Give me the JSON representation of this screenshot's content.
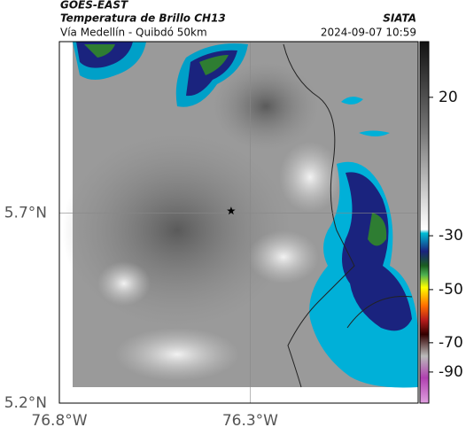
{
  "header": {
    "satellite": "GOES-EAST",
    "title": "Temperatura de Brillo CH13",
    "subtitle": "Vía Medellín - Quibdó 50km",
    "source": "SIATA",
    "datetime": "2024-09-07 10:59"
  },
  "map": {
    "xlim": [
      -76.8,
      -75.86
    ],
    "ylim": [
      5.2,
      6.15
    ],
    "xticks": [
      {
        "value": -76.8,
        "label": "76.8°W"
      },
      {
        "value": -76.3,
        "label": "76.3°W"
      }
    ],
    "yticks": [
      {
        "value": 5.2,
        "label": "5.2°N"
      },
      {
        "value": 5.7,
        "label": "5.7°N"
      }
    ],
    "grid": true,
    "marker": {
      "lon": -76.35,
      "lat": 5.705
    }
  },
  "colorbar": {
    "ticks": [
      20,
      -30,
      -50,
      -70,
      -90
    ]
  }
}
